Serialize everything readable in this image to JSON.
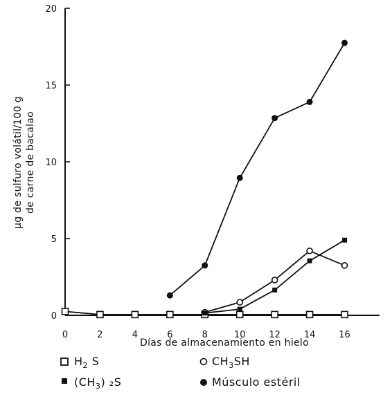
{
  "chart_data": {
    "type": "line",
    "xlabel": "Días de almacenamiento en hielo",
    "ylabel_line1": "μg de sulfuro volátil/100 g",
    "ylabel_line2": "de carne de bacalao",
    "xlim": [
      0,
      18
    ],
    "ylim": [
      0,
      20
    ],
    "xticks": [
      0,
      2,
      4,
      6,
      8,
      10,
      12,
      14,
      16
    ],
    "yticks": [
      0,
      5,
      10,
      15,
      20
    ],
    "grid": false,
    "legend_placement": "bottom",
    "series": [
      {
        "key": "h2s",
        "marker": "open-square",
        "legend": {
          "pre": "H",
          "sub": "2",
          "post": " S"
        },
        "x": [
          0,
          2,
          4,
          6,
          8,
          10,
          12,
          14,
          16
        ],
        "values": [
          0.25,
          0.05,
          0.05,
          0.05,
          0.05,
          0.05,
          0.05,
          0.05,
          0.05
        ]
      },
      {
        "key": "ch3sh",
        "marker": "open-circle",
        "legend": {
          "pre": "CH",
          "sub": "3",
          "post": "SH"
        },
        "x": [
          8,
          10,
          12,
          14,
          16
        ],
        "values": [
          0.2,
          0.85,
          2.3,
          4.2,
          3.25
        ]
      },
      {
        "key": "ch3_2s",
        "marker": "filled-square",
        "legend": {
          "pre": "(CH",
          "sub": "3",
          "post": ") ₂S"
        },
        "x": [
          8,
          10,
          12,
          14,
          16
        ],
        "values": [
          0.15,
          0.4,
          1.65,
          3.55,
          4.9
        ]
      },
      {
        "key": "musculo",
        "marker": "filled-circle",
        "legend": {
          "pre": "Músculo estéril",
          "sub": "",
          "post": ""
        },
        "x": [
          6,
          8,
          10,
          12,
          14,
          16
        ],
        "values": [
          1.3,
          3.25,
          8.95,
          12.85,
          13.9,
          17.75
        ]
      }
    ]
  }
}
